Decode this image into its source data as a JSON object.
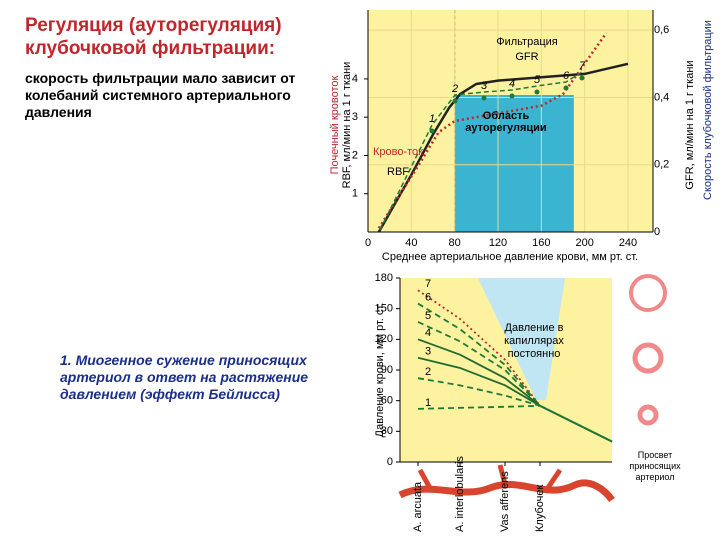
{
  "slide": {
    "title": "Регуляция (ауторегуляция) клубочковой фильтрации:",
    "text": "скорость фильтрации мало зависит от колебаний системного артериального давления",
    "note": "1. Миогенное сужение приносящих артериол в ответ на растяжение давлением (эффект Бейлисса)",
    "lumen_caption": "Просвет приносящих артериол"
  },
  "chart_data": [
    {
      "type": "line",
      "x_label": "Среднее артериальное давление крови, мм рт. ст.",
      "y_label": "RBF, мл/мин на 1 г ткани",
      "y2_label": "GFR, мл/мин на 1 г ткани",
      "y_title": "Почечный кровоток",
      "y2_title": "Скорость клубочковой фильтрации",
      "xlim": [
        0,
        240
      ],
      "xticks": [
        0,
        40,
        80,
        120,
        160,
        200,
        240
      ],
      "ylim": [
        0,
        5.8
      ],
      "yticks": [
        1,
        2,
        3,
        4
      ],
      "y2lim": [
        0,
        0.66
      ],
      "y2ticks": [
        0,
        {
          "value": 0.2,
          "label": "0,2"
        },
        {
          "value": 0.4,
          "label": "0,4"
        },
        {
          "value": 0.6,
          "label": "0,6"
        }
      ],
      "grid": true,
      "shaded_region": {
        "label": "Область ауторегуляции",
        "xlim": [
          80,
          190
        ],
        "color": "#3ab4d0"
      },
      "annotations": [
        "Фильтрация",
        "Крово-ток"
      ],
      "point_labels": [
        "1",
        "2",
        "3",
        "4",
        "5",
        "6",
        "7"
      ],
      "series": [
        {
          "name": "GFR",
          "axis": "y2",
          "color": "#222222",
          "dash": "solid",
          "x": [
            10,
            40,
            60,
            75,
            85,
            100,
            120,
            160,
            200,
            240
          ],
          "values": [
            0,
            0.17,
            0.29,
            0.37,
            0.41,
            0.44,
            0.45,
            0.46,
            0.47,
            0.5
          ]
        },
        {
          "name": "RBF",
          "color": "#c0272d",
          "dash": "dotted",
          "x": [
            10,
            30,
            50,
            65,
            80,
            100,
            120,
            160,
            180,
            200,
            220
          ],
          "values": [
            0.1,
            1,
            1.9,
            2.6,
            2.9,
            3.0,
            3.1,
            3.3,
            3.6,
            4.4,
            5.2
          ]
        }
      ]
    },
    {
      "type": "line",
      "y_label": "Давление крови, мм рт. ст.",
      "ylim": [
        0,
        180
      ],
      "yticks": [
        0,
        30,
        60,
        90,
        120,
        150,
        180
      ],
      "categories": [
        "A. arcuata",
        "A. interlobularis",
        "Vas afferens",
        "Клубочек",
        null
      ],
      "annotation": "Давление в капиллярах постоянно",
      "series": [
        {
          "name": "7",
          "color": "#c0272d",
          "dash": "dotted",
          "values": [
            168,
            140,
            100,
            55,
            20
          ]
        },
        {
          "name": "6",
          "color": "#1f7a3a",
          "dash": "dashed",
          "values": [
            155,
            130,
            95,
            55,
            20
          ]
        },
        {
          "name": "5",
          "color": "#1f7a3a",
          "dash": "dashed",
          "values": [
            137,
            118,
            90,
            55,
            20
          ]
        },
        {
          "name": "4",
          "color": "#1f6a30",
          "dash": "solid",
          "values": [
            120,
            105,
            82,
            55,
            20
          ]
        },
        {
          "name": "3",
          "color": "#1f6a30",
          "dash": "solid",
          "values": [
            102,
            92,
            75,
            55,
            20
          ]
        },
        {
          "name": "2",
          "color": "#1f7a3a",
          "dash": "dashed",
          "values": [
            82,
            75,
            65,
            55,
            20
          ]
        },
        {
          "name": "1",
          "color": "#1f7a3a",
          "dash": "dashed",
          "values": [
            52,
            53,
            54,
            55,
            20
          ]
        }
      ]
    }
  ]
}
